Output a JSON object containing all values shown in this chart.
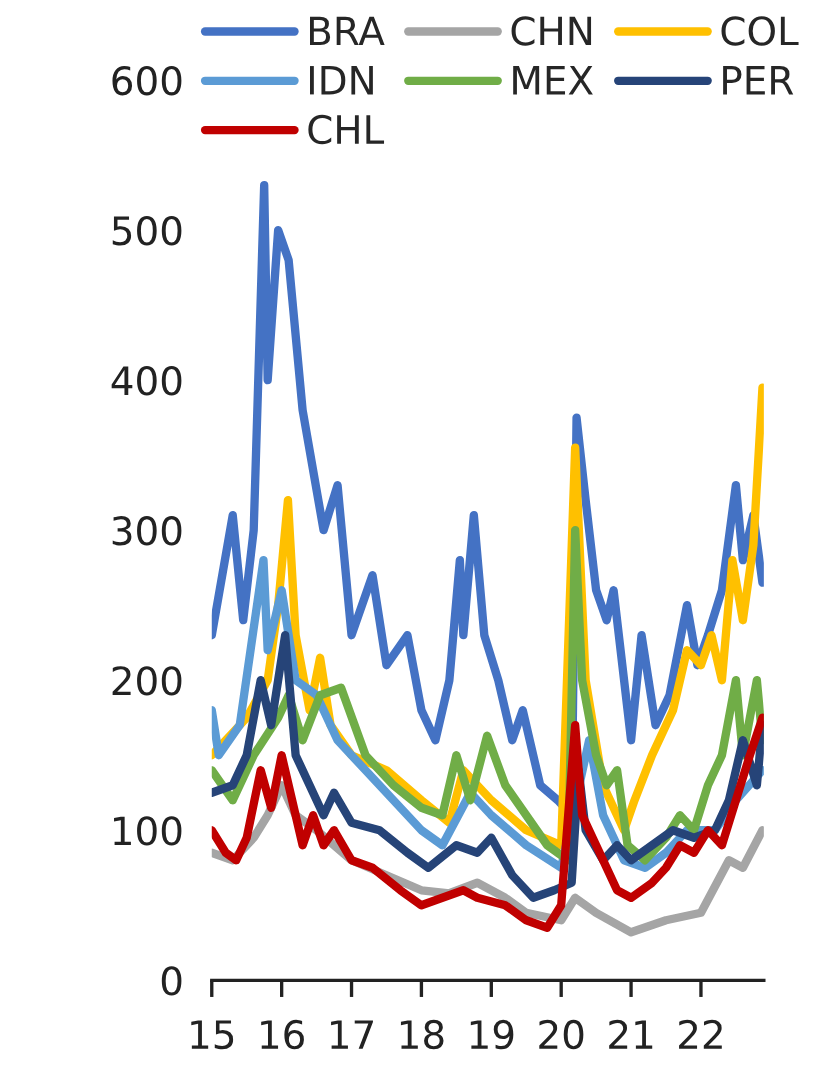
{
  "chart_data": {
    "type": "line",
    "xlim": [
      2015,
      2022.9
    ],
    "xticks": [
      {
        "value": 2015,
        "label": "15"
      },
      {
        "value": 2016,
        "label": "16"
      },
      {
        "value": 2017,
        "label": "17"
      },
      {
        "value": 2018,
        "label": "18"
      },
      {
        "value": 2019,
        "label": "19"
      },
      {
        "value": 2020,
        "label": "20"
      },
      {
        "value": 2021,
        "label": "21"
      },
      {
        "value": 2022,
        "label": "22"
      }
    ],
    "ylim": [
      0,
      600
    ],
    "yticks": [
      0,
      100,
      200,
      300,
      400,
      500,
      600
    ],
    "grid": false,
    "legend": "top",
    "marker": "none",
    "line_style": "solid",
    "series": [
      {
        "name": "BRA",
        "color": "#4472c4",
        "x": [
          2015.0,
          2015.3,
          2015.45,
          2015.6,
          2015.75,
          2015.8,
          2015.95,
          2016.1,
          2016.3,
          2016.6,
          2016.8,
          2017.0,
          2017.3,
          2017.5,
          2017.8,
          2018.0,
          2018.2,
          2018.4,
          2018.55,
          2018.6,
          2018.75,
          2018.9,
          2019.1,
          2019.3,
          2019.45,
          2019.7,
          2019.95,
          2020.15,
          2020.22,
          2020.35,
          2020.5,
          2020.65,
          2020.75,
          2020.9,
          2021.0,
          2021.15,
          2021.35,
          2021.55,
          2021.8,
          2021.95,
          2022.1,
          2022.3,
          2022.5,
          2022.6,
          2022.75,
          2022.88
        ],
        "values": [
          230,
          310,
          240,
          300,
          530,
          400,
          500,
          480,
          380,
          300,
          330,
          230,
          270,
          210,
          230,
          180,
          160,
          200,
          280,
          230,
          310,
          230,
          200,
          160,
          180,
          130,
          120,
          110,
          375,
          320,
          260,
          240,
          260,
          200,
          160,
          230,
          170,
          190,
          250,
          210,
          230,
          260,
          330,
          280,
          310,
          265
        ]
      },
      {
        "name": "CHN",
        "color": "#a5a5a5",
        "x": [
          2015.0,
          2015.3,
          2015.6,
          2015.8,
          2016.0,
          2016.2,
          2016.5,
          2017.0,
          2017.5,
          2018.0,
          2018.4,
          2018.8,
          2019.2,
          2019.5,
          2020.0,
          2020.2,
          2020.5,
          2021.0,
          2021.5,
          2022.0,
          2022.4,
          2022.6,
          2022.88
        ],
        "values": [
          85,
          80,
          95,
          110,
          130,
          110,
          100,
          80,
          70,
          60,
          58,
          65,
          55,
          45,
          40,
          55,
          45,
          32,
          40,
          45,
          80,
          75,
          100
        ]
      },
      {
        "name": "COL",
        "color": "#ffc000",
        "x": [
          2015.0,
          2015.5,
          2015.8,
          2015.95,
          2016.09,
          2016.2,
          2016.4,
          2016.55,
          2016.7,
          2017.0,
          2017.5,
          2018.0,
          2018.4,
          2018.6,
          2019.0,
          2019.5,
          2020.0,
          2020.2,
          2020.35,
          2020.6,
          2020.9,
          2021.05,
          2021.3,
          2021.6,
          2021.8,
          2022.0,
          2022.15,
          2022.3,
          2022.45,
          2022.6,
          2022.75,
          2022.88
        ],
        "values": [
          150,
          175,
          200,
          250,
          320,
          230,
          180,
          215,
          170,
          150,
          140,
          120,
          105,
          140,
          120,
          100,
          90,
          355,
          200,
          130,
          100,
          120,
          150,
          180,
          220,
          210,
          230,
          200,
          280,
          240,
          290,
          395
        ]
      },
      {
        "name": "IDN",
        "color": "#5b9bd5",
        "x": [
          2015.0,
          2015.1,
          2015.4,
          2015.74,
          2015.8,
          2016.0,
          2016.2,
          2016.5,
          2016.8,
          2017.2,
          2017.6,
          2018.0,
          2018.3,
          2018.7,
          2019.0,
          2019.5,
          2020.0,
          2020.2,
          2020.4,
          2020.6,
          2020.9,
          2021.2,
          2021.5,
          2021.8,
          2022.2,
          2022.5,
          2022.88
        ],
        "values": [
          180,
          150,
          170,
          280,
          220,
          260,
          200,
          190,
          160,
          140,
          120,
          100,
          90,
          125,
          110,
          90,
          75,
          null,
          160,
          110,
          80,
          75,
          85,
          100,
          100,
          120,
          140
        ]
      },
      {
        "name": "MEX",
        "color": "#70ad47",
        "x": [
          2015.0,
          2015.3,
          2015.6,
          2015.95,
          2016.1,
          2016.3,
          2016.55,
          2016.85,
          2017.2,
          2017.6,
          2018.0,
          2018.3,
          2018.5,
          2018.7,
          2018.94,
          2019.2,
          2019.5,
          2019.8,
          2020.1,
          2020.2,
          2020.3,
          2020.5,
          2020.65,
          2020.8,
          2020.95,
          2021.2,
          2021.5,
          2021.7,
          2021.9,
          2022.1,
          2022.3,
          2022.5,
          2022.6,
          2022.8,
          2022.88
        ],
        "values": [
          140,
          120,
          150,
          175,
          190,
          160,
          190,
          195,
          150,
          130,
          115,
          110,
          150,
          120,
          163,
          130,
          110,
          90,
          80,
          300,
          200,
          150,
          130,
          140,
          90,
          80,
          95,
          110,
          100,
          130,
          150,
          200,
          150,
          200,
          160
        ]
      },
      {
        "name": "PER",
        "color": "#264478",
        "x": [
          2015.0,
          2015.3,
          2015.5,
          2015.7,
          2015.85,
          2016.05,
          2016.2,
          2016.4,
          2016.6,
          2016.75,
          2017.0,
          2017.4,
          2017.8,
          2018.1,
          2018.5,
          2018.8,
          2019.0,
          2019.3,
          2019.6,
          2019.9,
          2020.15,
          2020.25,
          2020.35,
          2020.6,
          2020.8,
          2021.0,
          2021.3,
          2021.6,
          2021.9,
          2022.2,
          2022.4,
          2022.6,
          2022.8,
          2022.88
        ],
        "values": [
          125,
          130,
          150,
          200,
          170,
          230,
          150,
          130,
          110,
          125,
          105,
          100,
          85,
          75,
          90,
          85,
          95,
          70,
          55,
          60,
          65,
          140,
          100,
          80,
          90,
          80,
          90,
          100,
          95,
          100,
          120,
          160,
          130,
          170
        ]
      },
      {
        "name": "CHL",
        "color": "#c00000",
        "x": [
          2015.0,
          2015.2,
          2015.35,
          2015.5,
          2015.7,
          2015.85,
          2016.0,
          2016.15,
          2016.3,
          2016.45,
          2016.6,
          2016.75,
          2017.0,
          2017.3,
          2017.7,
          2018.0,
          2018.3,
          2018.6,
          2018.8,
          2019.2,
          2019.5,
          2019.8,
          2020.0,
          2020.2,
          2020.3,
          2020.5,
          2020.8,
          2021.0,
          2021.3,
          2021.5,
          2021.7,
          2021.9,
          2022.1,
          2022.3,
          2022.5,
          2022.7,
          2022.88
        ],
        "values": [
          100,
          85,
          80,
          95,
          140,
          115,
          150,
          120,
          90,
          110,
          90,
          100,
          80,
          75,
          60,
          50,
          55,
          60,
          55,
          50,
          40,
          35,
          50,
          170,
          110,
          90,
          60,
          55,
          65,
          75,
          90,
          85,
          100,
          90,
          120,
          150,
          175
        ]
      }
    ]
  }
}
